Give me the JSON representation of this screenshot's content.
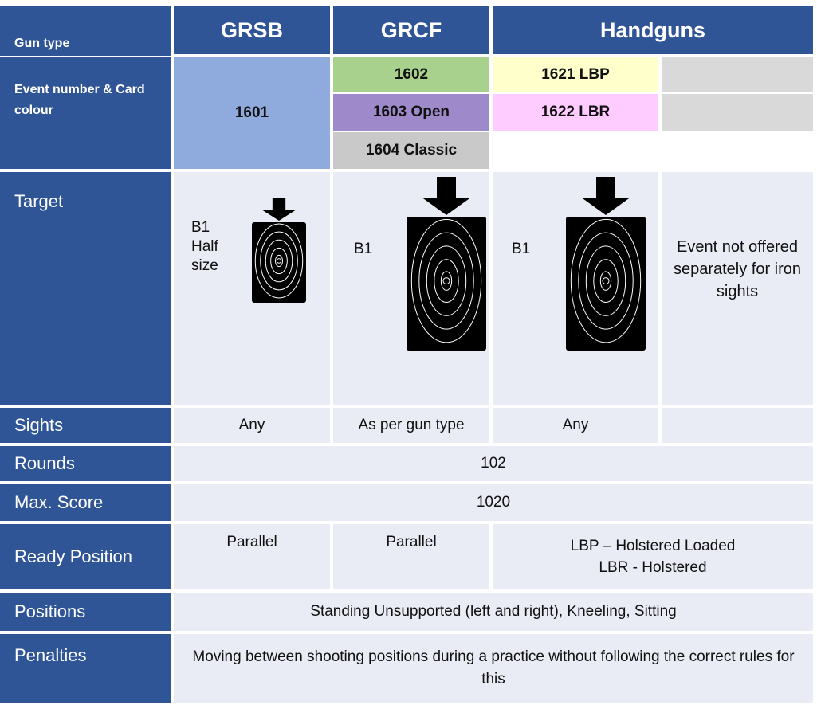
{
  "header": {
    "gun_type_label": "Gun type",
    "columns": [
      "GRSB",
      "GRCF",
      "Handguns"
    ]
  },
  "events": {
    "label": "Event number & Card colour",
    "grsb": "1601",
    "grcf": [
      "1602",
      "1603 Open",
      "1604 Classic"
    ],
    "handguns": [
      "1621 LBP",
      "1622 LBR"
    ]
  },
  "rows": {
    "target": {
      "label": "Target",
      "grsb": "B1 Half size",
      "grcf": "B1",
      "handguns": "B1",
      "other": "Event not offered separately for iron sights"
    },
    "sights": {
      "label": "Sights",
      "grsb": "Any",
      "grcf": "As per gun type",
      "handguns": "Any"
    },
    "rounds": {
      "label": "Rounds",
      "value": "102"
    },
    "max_score": {
      "label": "Max. Score",
      "value": "1020"
    },
    "ready_position": {
      "label": "Ready Position",
      "grsb": "Parallel",
      "grcf": "Parallel",
      "handguns": [
        "LBP – Holstered Loaded",
        "LBR - Holstered"
      ]
    },
    "positions": {
      "label": "Positions",
      "value": "Standing Unsupported (left and right), Kneeling, Sitting"
    },
    "penalties": {
      "label": "Penalties",
      "value": "Moving between shooting positions during a practice without following the correct rules for this"
    }
  }
}
